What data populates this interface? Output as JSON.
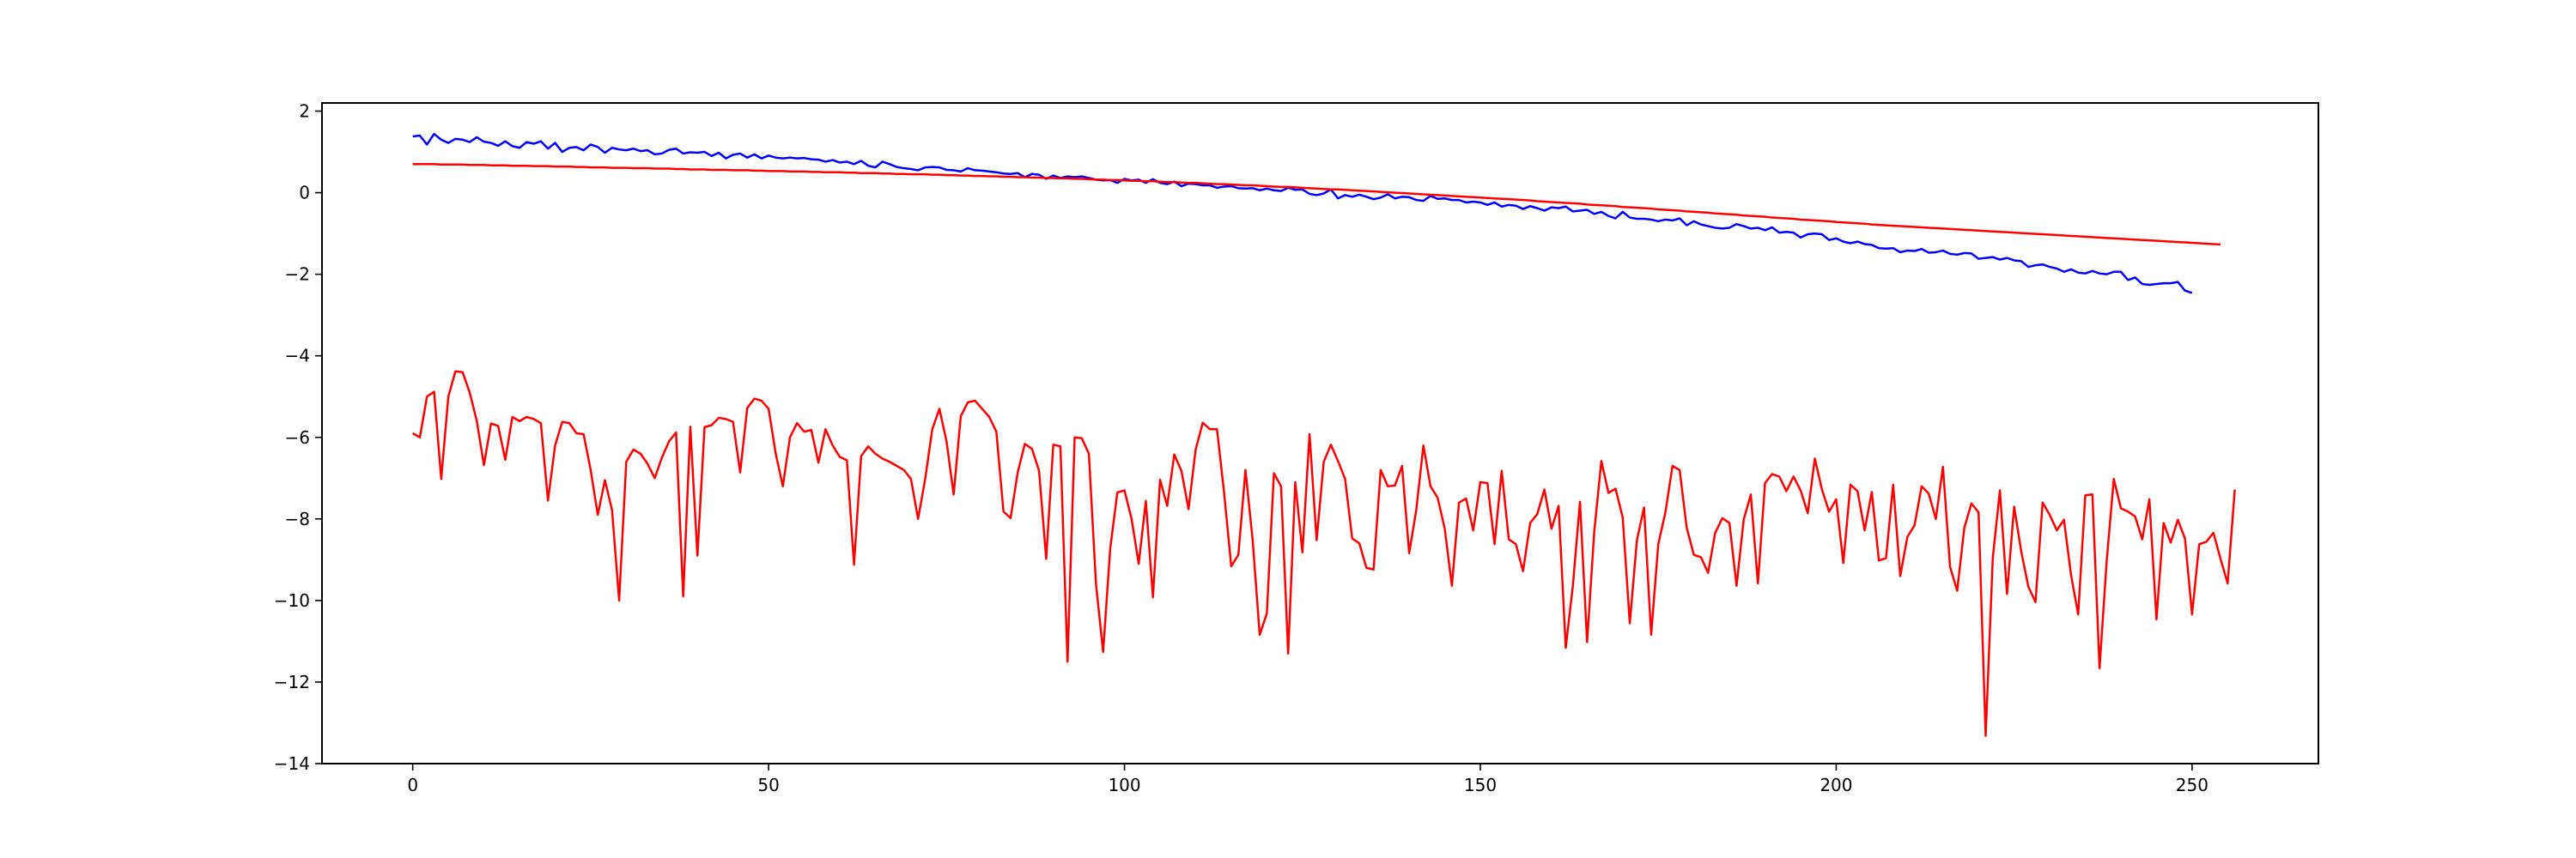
{
  "chart_data": {
    "type": "line",
    "title": "",
    "xlabel": "",
    "ylabel": "",
    "xlim": [
      -12.75,
      267.75
    ],
    "ylim": [
      -14.0,
      2.2
    ],
    "x_ticks": [
      0,
      50,
      100,
      150,
      200,
      250
    ],
    "y_ticks": [
      2,
      0,
      -2,
      -4,
      -6,
      -8,
      -10,
      -12,
      -14
    ],
    "x_tick_labels": [
      "0",
      "50",
      "100",
      "150",
      "200",
      "250"
    ],
    "y_tick_labels": [
      "2",
      "0",
      "−2",
      "−4",
      "−6",
      "−8",
      "−10",
      "−12",
      "−14"
    ],
    "grid": false,
    "legend": "none",
    "series": [
      {
        "color": "#0000ff",
        "kind": "noisy_curve",
        "values": [
          1.38,
          1.4,
          1.18,
          1.44,
          1.3,
          1.22,
          1.32,
          1.3,
          1.24,
          1.36,
          1.25,
          1.22,
          1.15,
          1.26,
          1.14,
          1.1,
          1.24,
          1.2,
          1.26,
          1.08,
          1.22,
          1.0,
          1.1,
          1.12,
          1.04,
          1.18,
          1.12,
          0.98,
          1.1,
          1.06,
          1.04,
          1.08,
          1.02,
          1.04,
          0.94,
          0.96,
          1.05,
          1.08,
          0.96,
          0.99,
          0.98,
          1.0,
          0.9,
          0.98,
          0.84,
          0.93,
          0.96,
          0.86,
          0.94,
          0.84,
          0.91,
          0.86,
          0.84,
          0.86,
          0.84,
          0.85,
          0.82,
          0.81,
          0.76,
          0.8,
          0.74,
          0.76,
          0.7,
          0.78,
          0.66,
          0.62,
          0.76,
          0.7,
          0.63,
          0.6,
          0.58,
          0.55,
          0.62,
          0.63,
          0.62,
          0.56,
          0.55,
          0.52,
          0.6,
          0.55,
          0.54,
          0.52,
          0.5,
          0.47,
          0.46,
          0.48,
          0.38,
          0.46,
          0.44,
          0.34,
          0.42,
          0.36,
          0.4,
          0.38,
          0.4,
          0.36,
          0.32,
          0.3,
          0.31,
          0.24,
          0.34,
          0.3,
          0.32,
          0.24,
          0.33,
          0.24,
          0.21,
          0.27,
          0.16,
          0.22,
          0.21,
          0.18,
          0.18,
          0.12,
          0.15,
          0.16,
          0.11,
          0.1,
          0.11,
          0.06,
          0.1,
          0.06,
          0.04,
          0.12,
          0.07,
          0.08,
          -0.03,
          -0.06,
          -0.02,
          0.08,
          -0.14,
          -0.06,
          -0.1,
          -0.05,
          -0.1,
          -0.16,
          -0.12,
          -0.04,
          -0.14,
          -0.1,
          -0.11,
          -0.18,
          -0.2,
          -0.08,
          -0.15,
          -0.14,
          -0.18,
          -0.18,
          -0.24,
          -0.22,
          -0.24,
          -0.3,
          -0.24,
          -0.34,
          -0.3,
          -0.32,
          -0.4,
          -0.33,
          -0.38,
          -0.44,
          -0.36,
          -0.38,
          -0.34,
          -0.46,
          -0.44,
          -0.42,
          -0.52,
          -0.47,
          -0.57,
          -0.63,
          -0.47,
          -0.61,
          -0.64,
          -0.64,
          -0.66,
          -0.7,
          -0.66,
          -0.68,
          -0.63,
          -0.8,
          -0.7,
          -0.78,
          -0.82,
          -0.86,
          -0.88,
          -0.86,
          -0.77,
          -0.82,
          -0.88,
          -0.86,
          -0.92,
          -0.85,
          -0.98,
          -0.96,
          -0.98,
          -1.1,
          -1.02,
          -1.0,
          -1.02,
          -1.16,
          -1.12,
          -1.2,
          -1.24,
          -1.2,
          -1.26,
          -1.28,
          -1.36,
          -1.37,
          -1.36,
          -1.46,
          -1.42,
          -1.43,
          -1.38,
          -1.47,
          -1.46,
          -1.42,
          -1.5,
          -1.52,
          -1.48,
          -1.49,
          -1.62,
          -1.6,
          -1.58,
          -1.64,
          -1.6,
          -1.66,
          -1.68,
          -1.82,
          -1.78,
          -1.76,
          -1.82,
          -1.86,
          -1.94,
          -1.88,
          -1.96,
          -1.98,
          -1.92,
          -1.98,
          -2.0,
          -1.94,
          -1.94,
          -2.14,
          -2.08,
          -2.24,
          -2.26,
          -2.24,
          -2.22,
          -2.22,
          -2.19,
          -2.4,
          -2.46
        ]
      },
      {
        "color": "#ff0000",
        "kind": "smooth_curve",
        "values": [
          0.7,
          0.7,
          0.7,
          0.7,
          0.69,
          0.69,
          0.69,
          0.69,
          0.68,
          0.68,
          0.68,
          0.67,
          0.67,
          0.67,
          0.66,
          0.66,
          0.66,
          0.65,
          0.65,
          0.65,
          0.64,
          0.64,
          0.64,
          0.63,
          0.63,
          0.62,
          0.62,
          0.62,
          0.61,
          0.61,
          0.61,
          0.6,
          0.6,
          0.6,
          0.59,
          0.59,
          0.59,
          0.58,
          0.58,
          0.57,
          0.57,
          0.57,
          0.56,
          0.56,
          0.56,
          0.55,
          0.55,
          0.55,
          0.54,
          0.54,
          0.53,
          0.53,
          0.53,
          0.52,
          0.52,
          0.52,
          0.51,
          0.51,
          0.5,
          0.5,
          0.5,
          0.49,
          0.49,
          0.48,
          0.48,
          0.48,
          0.47,
          0.47,
          0.46,
          0.46,
          0.45,
          0.45,
          0.45,
          0.44,
          0.44,
          0.43,
          0.43,
          0.42,
          0.42,
          0.41,
          0.41,
          0.4,
          0.4,
          0.39,
          0.39,
          0.38,
          0.38,
          0.37,
          0.37,
          0.36,
          0.36,
          0.35,
          0.35,
          0.34,
          0.34,
          0.33,
          0.32,
          0.32,
          0.31,
          0.31,
          0.3,
          0.29,
          0.29,
          0.28,
          0.28,
          0.27,
          0.26,
          0.26,
          0.25,
          0.24,
          0.24,
          0.23,
          0.22,
          0.21,
          0.21,
          0.2,
          0.19,
          0.18,
          0.18,
          0.17,
          0.16,
          0.15,
          0.14,
          0.14,
          0.13,
          0.12,
          0.11,
          0.1,
          0.09,
          0.08,
          0.08,
          0.07,
          0.06,
          0.05,
          0.04,
          0.03,
          0.02,
          0.01,
          0.0,
          -0.01,
          -0.02,
          -0.03,
          -0.04,
          -0.05,
          -0.06,
          -0.07,
          -0.08,
          -0.09,
          -0.1,
          -0.11,
          -0.12,
          -0.13,
          -0.14,
          -0.15,
          -0.16,
          -0.17,
          -0.18,
          -0.19,
          -0.21,
          -0.22,
          -0.23,
          -0.24,
          -0.25,
          -0.26,
          -0.27,
          -0.29,
          -0.3,
          -0.31,
          -0.32,
          -0.33,
          -0.35,
          -0.36,
          -0.37,
          -0.38,
          -0.39,
          -0.41,
          -0.42,
          -0.43,
          -0.44,
          -0.46,
          -0.47,
          -0.48,
          -0.49,
          -0.51,
          -0.52,
          -0.53,
          -0.54,
          -0.56,
          -0.57,
          -0.58,
          -0.59,
          -0.61,
          -0.62,
          -0.63,
          -0.64,
          -0.66,
          -0.67,
          -0.68,
          -0.69,
          -0.7,
          -0.72,
          -0.73,
          -0.74,
          -0.75,
          -0.76,
          -0.78,
          -0.79,
          -0.8,
          -0.81,
          -0.82,
          -0.83,
          -0.84,
          -0.85,
          -0.86,
          -0.87,
          -0.88,
          -0.89,
          -0.9,
          -0.91,
          -0.92,
          -0.93,
          -0.94,
          -0.95,
          -0.96,
          -0.97,
          -0.98,
          -0.99,
          -1.0,
          -1.01,
          -1.02,
          -1.03,
          -1.04,
          -1.05,
          -1.06,
          -1.07,
          -1.08,
          -1.09,
          -1.1,
          -1.11,
          -1.12,
          -1.13,
          -1.14,
          -1.15,
          -1.16,
          -1.17,
          -1.18,
          -1.19,
          -1.2,
          -1.21,
          -1.22,
          -1.23,
          -1.24,
          -1.25,
          -1.26,
          -1.27
        ]
      },
      {
        "color": "#ff0000",
        "kind": "noisy_curve",
        "values": [
          -5.9,
          -6.0,
          -5.0,
          -4.88,
          -7.02,
          -5.0,
          -4.38,
          -4.4,
          -4.9,
          -5.6,
          -6.68,
          -5.66,
          -5.72,
          -6.55,
          -5.5,
          -5.6,
          -5.5,
          -5.55,
          -5.65,
          -7.55,
          -6.2,
          -5.62,
          -5.65,
          -5.9,
          -5.92,
          -6.8,
          -7.9,
          -7.05,
          -7.78,
          -10.0,
          -6.6,
          -6.3,
          -6.4,
          -6.65,
          -7.0,
          -6.5,
          -6.1,
          -5.88,
          -9.9,
          -5.74,
          -8.9,
          -5.75,
          -5.7,
          -5.52,
          -5.55,
          -5.62,
          -6.86,
          -5.28,
          -5.05,
          -5.1,
          -5.3,
          -6.4,
          -7.2,
          -6.0,
          -5.65,
          -5.86,
          -5.82,
          -6.62,
          -5.8,
          -6.2,
          -6.48,
          -6.56,
          -9.12,
          -6.46,
          -6.22,
          -6.4,
          -6.52,
          -6.6,
          -6.7,
          -6.8,
          -7.02,
          -8.0,
          -7.02,
          -5.8,
          -5.3,
          -6.1,
          -7.4,
          -5.48,
          -5.14,
          -5.1,
          -5.3,
          -5.5,
          -5.86,
          -7.82,
          -7.98,
          -6.86,
          -6.16,
          -6.28,
          -6.82,
          -8.98,
          -6.18,
          -6.22,
          -11.5,
          -6.0,
          -6.02,
          -6.4,
          -9.6,
          -11.26,
          -8.72,
          -7.35,
          -7.3,
          -8.0,
          -9.1,
          -7.56,
          -9.92,
          -7.04,
          -7.68,
          -6.42,
          -6.82,
          -7.76,
          -6.3,
          -5.64,
          -5.8,
          -5.8,
          -7.36,
          -9.16,
          -8.88,
          -6.8,
          -8.5,
          -10.84,
          -10.32,
          -6.88,
          -7.2,
          -11.3,
          -7.1,
          -8.82,
          -5.92,
          -8.52,
          -6.6,
          -6.18,
          -6.58,
          -7.02,
          -8.48,
          -8.6,
          -9.2,
          -9.24,
          -6.8,
          -7.2,
          -7.18,
          -6.7,
          -8.84,
          -7.78,
          -6.2,
          -7.2,
          -7.48,
          -8.24,
          -9.64,
          -7.6,
          -7.5,
          -8.28,
          -7.1,
          -7.12,
          -8.62,
          -6.82,
          -8.5,
          -8.62,
          -9.28,
          -8.1,
          -7.88,
          -7.28,
          -8.24,
          -7.68,
          -11.16,
          -9.64,
          -7.58,
          -11.02,
          -8.32,
          -6.58,
          -7.36,
          -7.26,
          -7.96,
          -10.56,
          -8.52,
          -7.72,
          -10.84,
          -8.62,
          -7.84,
          -6.7,
          -6.8,
          -8.22,
          -8.88,
          -8.94,
          -9.32,
          -8.34,
          -7.98,
          -8.1,
          -9.64,
          -8.02,
          -7.4,
          -9.58,
          -7.12,
          -6.9,
          -6.96,
          -7.32,
          -6.96,
          -7.3,
          -7.86,
          -6.52,
          -7.28,
          -7.82,
          -7.52,
          -9.08,
          -7.16,
          -7.32,
          -8.28,
          -7.34,
          -9.02,
          -8.96,
          -7.16,
          -9.4,
          -8.44,
          -8.16,
          -7.2,
          -7.38,
          -8.0,
          -6.72,
          -9.18,
          -9.76,
          -8.22,
          -7.62,
          -7.84,
          -13.32,
          -8.96,
          -7.3,
          -9.84,
          -7.7,
          -8.8,
          -9.66,
          -10.04,
          -7.6,
          -7.9,
          -8.28,
          -8.02,
          -9.38,
          -10.34,
          -7.42,
          -7.4,
          -11.66,
          -9.04,
          -7.02,
          -7.74,
          -7.82,
          -7.94,
          -8.5,
          -7.52,
          -10.46,
          -8.1,
          -8.58,
          -8.02,
          -8.48,
          -10.34,
          -8.62,
          -8.56,
          -8.34,
          -8.98,
          -9.58,
          -7.28
        ]
      }
    ]
  }
}
